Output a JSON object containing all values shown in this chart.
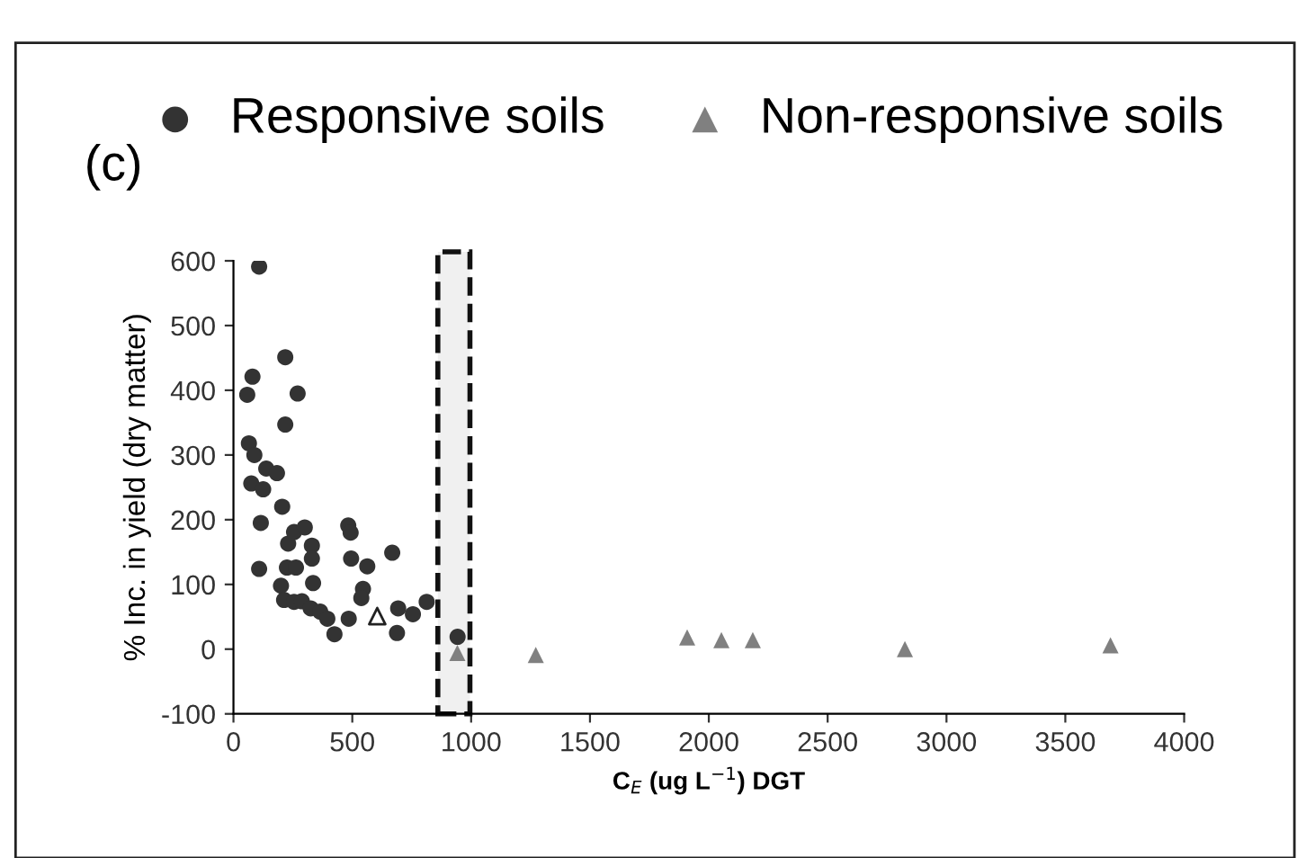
{
  "chart_data": {
    "type": "scatter",
    "title": "(c)",
    "xlabel": "C$_{E}$ (ug L$^{−1}$) DGT",
    "ylabel": "% Inc. in yield (dry matter)",
    "series": [
      {
        "name": "Responsive soils",
        "color": "#333333",
        "marker": "circle",
        "x": [
          108,
          80,
          58,
          218,
          270,
          218,
          65,
          88,
          75,
          125,
          138,
          183,
          115,
          108,
          205,
          230,
          255,
          300,
          330,
          330,
          225,
          263,
          200,
          213,
          255,
          288,
          335,
          325,
          365,
          395,
          425,
          485,
          483,
          493,
          495,
          563,
          545,
          538,
          668,
          693,
          688,
          755,
          813,
          943
        ],
        "values": [
          591,
          421,
          393,
          451,
          395,
          347,
          318,
          300,
          256,
          247,
          279,
          272,
          195,
          124,
          220,
          163,
          181,
          188,
          160,
          140,
          126,
          126,
          98,
          76,
          73,
          74,
          102,
          63,
          58,
          47,
          23,
          47,
          191,
          180,
          140,
          128,
          93,
          79,
          149,
          63,
          25,
          54,
          73,
          19
        ]
      },
      {
        "name": "Non-responsive soils",
        "color": "#808080",
        "marker": "triangle",
        "x": [
          942,
          1272,
          1909,
          2053,
          2185,
          2825,
          3690
        ],
        "values": [
          -6,
          -9,
          18,
          14,
          14,
          0,
          6
        ]
      },
      {
        "color": "#ffffff",
        "marker": "triangle",
        "x": [
          605
        ],
        "values": [
          51
        ]
      }
    ],
    "xlim": [
      0,
      4000
    ],
    "xticks": [
      0,
      500,
      1000,
      1500,
      2000,
      2500,
      3000,
      3500,
      4000
    ],
    "ylim": [
      -100,
      600
    ],
    "yticks": [
      -100,
      0,
      100,
      200,
      300,
      400,
      500,
      600
    ],
    "bands": [
      {
        "axis": "x",
        "from": 860,
        "to": 995
      }
    ],
    "grid": false,
    "legend": "top"
  }
}
